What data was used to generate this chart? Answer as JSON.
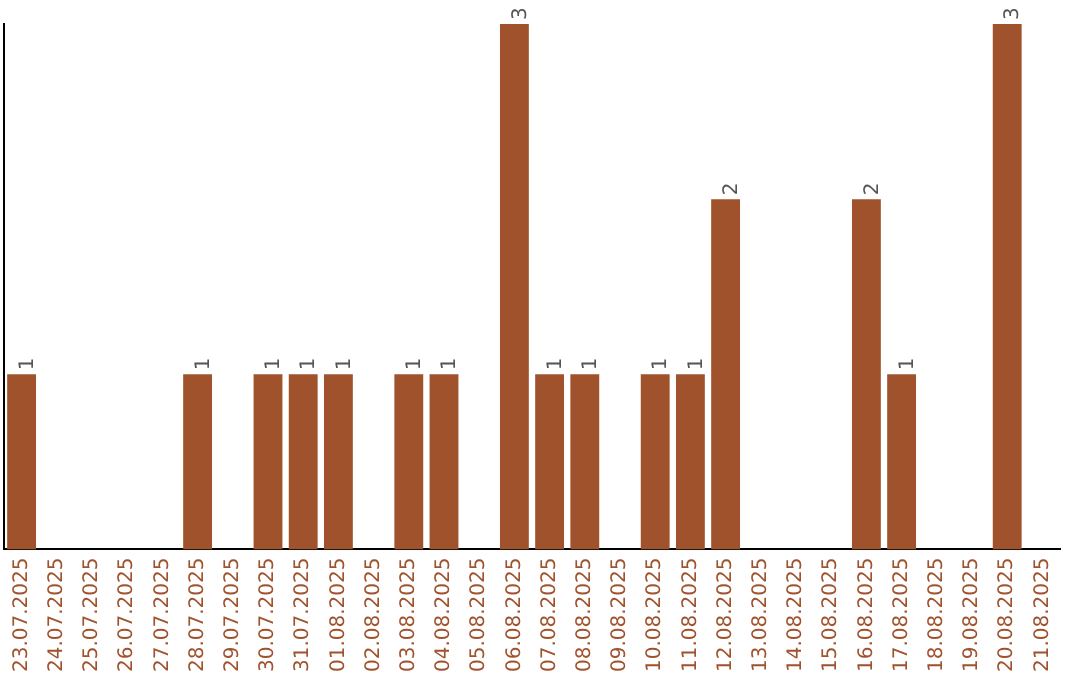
{
  "chart_data": {
    "type": "bar",
    "categories": [
      "23.07.2025",
      "24.07.2025",
      "25.07.2025",
      "26.07.2025",
      "27.07.2025",
      "28.07.2025",
      "29.07.2025",
      "30.07.2025",
      "31.07.2025",
      "01.08.2025",
      "02.08.2025",
      "03.08.2025",
      "04.08.2025",
      "05.08.2025",
      "06.08.2025",
      "07.08.2025",
      "08.08.2025",
      "09.08.2025",
      "10.08.2025",
      "11.08.2025",
      "12.08.2025",
      "13.08.2025",
      "14.08.2025",
      "15.08.2025",
      "16.08.2025",
      "17.08.2025",
      "18.08.2025",
      "19.08.2025",
      "20.08.2025",
      "21.08.2025"
    ],
    "values": [
      1,
      0,
      0,
      0,
      0,
      1,
      0,
      1,
      1,
      1,
      0,
      1,
      1,
      0,
      3,
      1,
      1,
      0,
      1,
      1,
      2,
      0,
      0,
      0,
      2,
      1,
      0,
      0,
      3,
      0
    ],
    "value_labels": [
      "1",
      null,
      null,
      null,
      null,
      "1",
      null,
      "1",
      "1",
      "1",
      null,
      "1",
      "1",
      null,
      "3",
      "1",
      "1",
      null,
      "1",
      "1",
      "2",
      null,
      null,
      null,
      "2",
      "1",
      null,
      null,
      "3",
      null
    ],
    "color": "#a0522d",
    "ylim": [
      0,
      3
    ],
    "tick_labels": "x",
    "grid": false,
    "legend": false
  }
}
